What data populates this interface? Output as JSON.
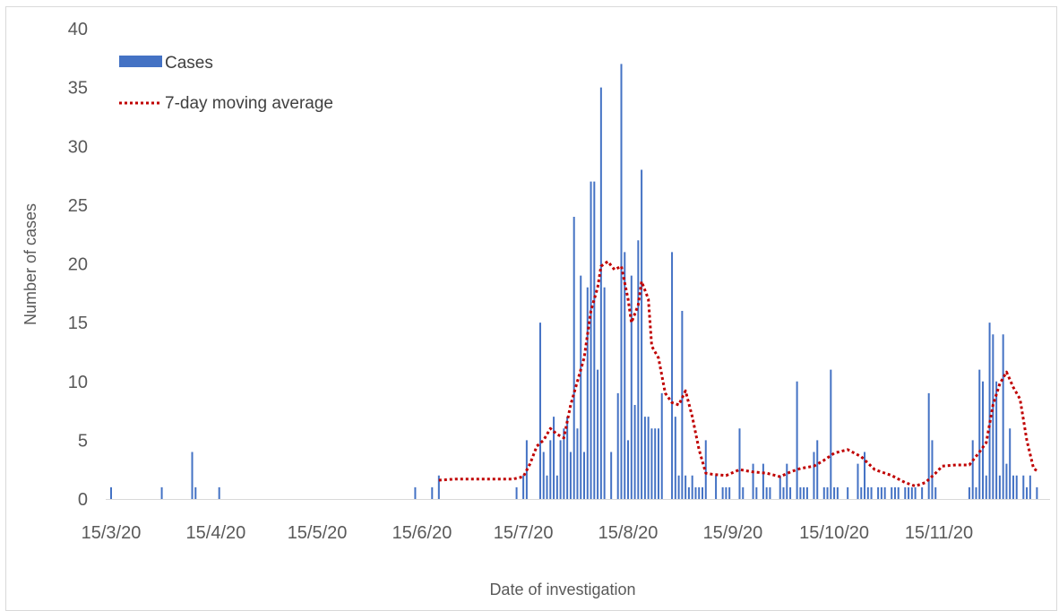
{
  "chart_data": {
    "type": "bar",
    "title": "",
    "xlabel": "Date of investigation",
    "ylabel": "Number of cases",
    "ylim": [
      0,
      40
    ],
    "y_ticks": [
      0,
      5,
      10,
      15,
      20,
      25,
      30,
      35,
      40
    ],
    "x_ticks": [
      {
        "date": "2020-03-15",
        "label": "15/3/20"
      },
      {
        "date": "2020-04-15",
        "label": "15/4/20"
      },
      {
        "date": "2020-05-15",
        "label": "15/5/20"
      },
      {
        "date": "2020-06-15",
        "label": "15/6/20"
      },
      {
        "date": "2020-07-15",
        "label": "15/7/20"
      },
      {
        "date": "2020-08-15",
        "label": "15/8/20"
      },
      {
        "date": "2020-09-15",
        "label": "15/9/20"
      },
      {
        "date": "2020-10-15",
        "label": "15/10/20"
      },
      {
        "date": "2020-11-15",
        "label": "15/11/20"
      }
    ],
    "xlim": [
      "2020-03-15",
      "2020-12-06"
    ],
    "grid": false,
    "legend_placement": "top-left",
    "colors": {
      "cases": "#4472c4",
      "moving_average": "#c00000"
    },
    "series": [
      {
        "name": "Cases",
        "type": "bar",
        "points": [
          [
            "2020-03-15",
            1
          ],
          [
            "2020-03-30",
            1
          ],
          [
            "2020-04-08",
            4
          ],
          [
            "2020-04-09",
            1
          ],
          [
            "2020-04-16",
            1
          ],
          [
            "2020-06-13",
            1
          ],
          [
            "2020-06-18",
            1
          ],
          [
            "2020-06-20",
            2
          ],
          [
            "2020-07-13",
            1
          ],
          [
            "2020-07-15",
            2
          ],
          [
            "2020-07-16",
            5
          ],
          [
            "2020-07-20",
            15
          ],
          [
            "2020-07-21",
            4
          ],
          [
            "2020-07-22",
            2
          ],
          [
            "2020-07-23",
            5
          ],
          [
            "2020-07-24",
            7
          ],
          [
            "2020-07-25",
            2
          ],
          [
            "2020-07-26",
            5
          ],
          [
            "2020-07-27",
            6
          ],
          [
            "2020-07-28",
            7
          ],
          [
            "2020-07-29",
            4
          ],
          [
            "2020-07-30",
            24
          ],
          [
            "2020-07-31",
            6
          ],
          [
            "2020-08-01",
            19
          ],
          [
            "2020-08-02",
            4
          ],
          [
            "2020-08-03",
            18
          ],
          [
            "2020-08-04",
            27
          ],
          [
            "2020-08-05",
            27
          ],
          [
            "2020-08-06",
            11
          ],
          [
            "2020-08-07",
            35
          ],
          [
            "2020-08-08",
            18
          ],
          [
            "2020-08-10",
            4
          ],
          [
            "2020-08-12",
            9
          ],
          [
            "2020-08-13",
            37
          ],
          [
            "2020-08-14",
            21
          ],
          [
            "2020-08-15",
            5
          ],
          [
            "2020-08-16",
            19
          ],
          [
            "2020-08-17",
            8
          ],
          [
            "2020-08-18",
            22
          ],
          [
            "2020-08-19",
            28
          ],
          [
            "2020-08-20",
            7
          ],
          [
            "2020-08-21",
            7
          ],
          [
            "2020-08-22",
            6
          ],
          [
            "2020-08-23",
            6
          ],
          [
            "2020-08-24",
            6
          ],
          [
            "2020-08-25",
            9
          ],
          [
            "2020-08-28",
            21
          ],
          [
            "2020-08-29",
            7
          ],
          [
            "2020-08-30",
            2
          ],
          [
            "2020-08-31",
            16
          ],
          [
            "2020-09-01",
            2
          ],
          [
            "2020-09-02",
            1
          ],
          [
            "2020-09-03",
            2
          ],
          [
            "2020-09-04",
            1
          ],
          [
            "2020-09-05",
            1
          ],
          [
            "2020-09-06",
            1
          ],
          [
            "2020-09-07",
            5
          ],
          [
            "2020-09-10",
            2
          ],
          [
            "2020-09-12",
            1
          ],
          [
            "2020-09-13",
            1
          ],
          [
            "2020-09-14",
            1
          ],
          [
            "2020-09-17",
            6
          ],
          [
            "2020-09-18",
            1
          ],
          [
            "2020-09-21",
            3
          ],
          [
            "2020-09-22",
            1
          ],
          [
            "2020-09-24",
            3
          ],
          [
            "2020-09-25",
            1
          ],
          [
            "2020-09-26",
            1
          ],
          [
            "2020-09-29",
            2
          ],
          [
            "2020-09-30",
            1
          ],
          [
            "2020-10-01",
            3
          ],
          [
            "2020-10-02",
            1
          ],
          [
            "2020-10-04",
            10
          ],
          [
            "2020-10-05",
            1
          ],
          [
            "2020-10-06",
            1
          ],
          [
            "2020-10-07",
            1
          ],
          [
            "2020-10-09",
            4
          ],
          [
            "2020-10-10",
            5
          ],
          [
            "2020-10-12",
            1
          ],
          [
            "2020-10-13",
            1
          ],
          [
            "2020-10-14",
            11
          ],
          [
            "2020-10-15",
            1
          ],
          [
            "2020-10-16",
            1
          ],
          [
            "2020-10-19",
            1
          ],
          [
            "2020-10-22",
            3
          ],
          [
            "2020-10-23",
            1
          ],
          [
            "2020-10-24",
            4
          ],
          [
            "2020-10-25",
            1
          ],
          [
            "2020-10-26",
            1
          ],
          [
            "2020-10-28",
            1
          ],
          [
            "2020-10-29",
            1
          ],
          [
            "2020-10-30",
            1
          ],
          [
            "2020-11-01",
            1
          ],
          [
            "2020-11-02",
            1
          ],
          [
            "2020-11-03",
            1
          ],
          [
            "2020-11-05",
            1
          ],
          [
            "2020-11-06",
            1
          ],
          [
            "2020-11-07",
            1
          ],
          [
            "2020-11-08",
            1
          ],
          [
            "2020-11-10",
            1
          ],
          [
            "2020-11-12",
            9
          ],
          [
            "2020-11-13",
            5
          ],
          [
            "2020-11-14",
            1
          ],
          [
            "2020-11-24",
            1
          ],
          [
            "2020-11-25",
            5
          ],
          [
            "2020-11-26",
            1
          ],
          [
            "2020-11-27",
            11
          ],
          [
            "2020-11-28",
            10
          ],
          [
            "2020-11-29",
            2
          ],
          [
            "2020-11-30",
            15
          ],
          [
            "2020-12-01",
            14
          ],
          [
            "2020-12-02",
            10
          ],
          [
            "2020-12-03",
            2
          ],
          [
            "2020-12-04",
            14
          ],
          [
            "2020-12-05",
            3
          ],
          [
            "2020-12-06",
            6
          ],
          [
            "2020-12-07",
            2
          ],
          [
            "2020-12-08",
            2
          ],
          [
            "2020-12-10",
            2
          ],
          [
            "2020-12-11",
            1
          ],
          [
            "2020-12-12",
            2
          ],
          [
            "2020-12-14",
            1
          ]
        ]
      },
      {
        "name": "7-day moving average",
        "type": "line",
        "points": [
          [
            "2020-06-20",
            1.6
          ],
          [
            "2020-06-25",
            1.7
          ],
          [
            "2020-07-05",
            1.7
          ],
          [
            "2020-07-12",
            1.7
          ],
          [
            "2020-07-15",
            1.9
          ],
          [
            "2020-07-17",
            3.0
          ],
          [
            "2020-07-19",
            4.5
          ],
          [
            "2020-07-21",
            5.0
          ],
          [
            "2020-07-23",
            6.0
          ],
          [
            "2020-07-25",
            5.5
          ],
          [
            "2020-07-27",
            5.2
          ],
          [
            "2020-07-29",
            8.0
          ],
          [
            "2020-07-31",
            10.0
          ],
          [
            "2020-08-02",
            12.0
          ],
          [
            "2020-08-04",
            16.0
          ],
          [
            "2020-08-06",
            18.0
          ],
          [
            "2020-08-07",
            19.8
          ],
          [
            "2020-08-09",
            20.2
          ],
          [
            "2020-08-11",
            19.5
          ],
          [
            "2020-08-13",
            19.8
          ],
          [
            "2020-08-15",
            17.0
          ],
          [
            "2020-08-16",
            15.0
          ],
          [
            "2020-08-18",
            16.5
          ],
          [
            "2020-08-19",
            18.5
          ],
          [
            "2020-08-21",
            17.0
          ],
          [
            "2020-08-22",
            13.0
          ],
          [
            "2020-08-24",
            12.0
          ],
          [
            "2020-08-26",
            9.0
          ],
          [
            "2020-08-28",
            8.2
          ],
          [
            "2020-08-30",
            8.0
          ],
          [
            "2020-09-01",
            9.2
          ],
          [
            "2020-09-03",
            7.0
          ],
          [
            "2020-09-05",
            4.2
          ],
          [
            "2020-09-07",
            2.2
          ],
          [
            "2020-09-09",
            2.1
          ],
          [
            "2020-09-13",
            2.0
          ],
          [
            "2020-09-17",
            2.5
          ],
          [
            "2020-09-21",
            2.3
          ],
          [
            "2020-09-25",
            2.2
          ],
          [
            "2020-09-29",
            1.9
          ],
          [
            "2020-10-02",
            2.3
          ],
          [
            "2020-10-05",
            2.6
          ],
          [
            "2020-10-09",
            2.8
          ],
          [
            "2020-10-12",
            3.3
          ],
          [
            "2020-10-15",
            3.9
          ],
          [
            "2020-10-19",
            4.2
          ],
          [
            "2020-10-23",
            3.6
          ],
          [
            "2020-10-27",
            2.5
          ],
          [
            "2020-11-01",
            2.0
          ],
          [
            "2020-11-05",
            1.4
          ],
          [
            "2020-11-08",
            1.1
          ],
          [
            "2020-11-11",
            1.4
          ],
          [
            "2020-11-14",
            2.2
          ],
          [
            "2020-11-16",
            2.8
          ],
          [
            "2020-11-20",
            2.9
          ],
          [
            "2020-11-24",
            2.9
          ],
          [
            "2020-11-27",
            4.0
          ],
          [
            "2020-11-29",
            4.8
          ],
          [
            "2020-12-01",
            8.0
          ],
          [
            "2020-12-03",
            9.8
          ],
          [
            "2020-12-05",
            10.8
          ],
          [
            "2020-12-07",
            9.5
          ],
          [
            "2020-12-09",
            8.5
          ],
          [
            "2020-12-11",
            5.0
          ],
          [
            "2020-12-13",
            2.6
          ],
          [
            "2020-12-14",
            2.4
          ]
        ]
      }
    ]
  }
}
